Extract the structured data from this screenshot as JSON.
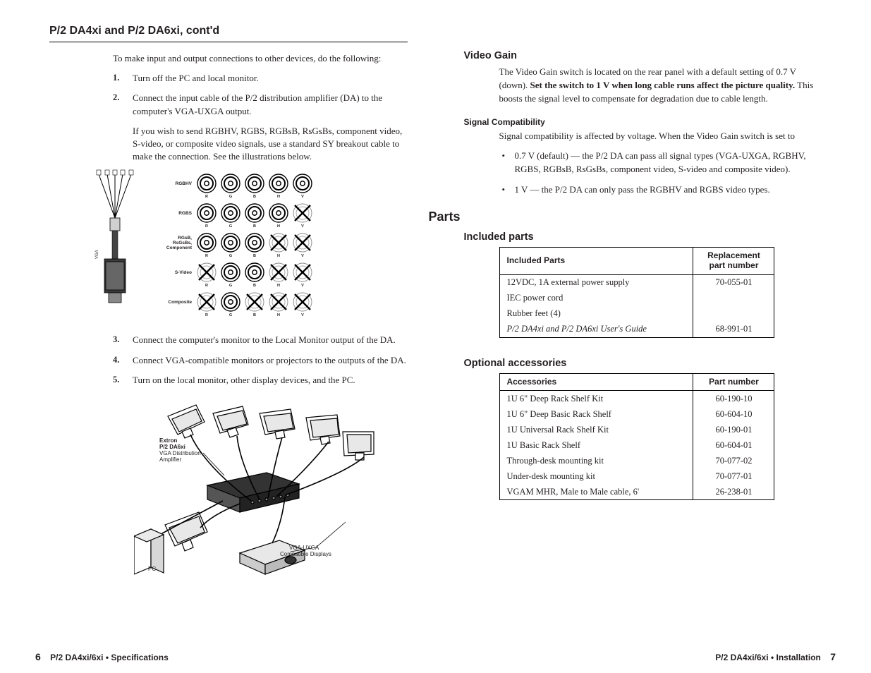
{
  "left": {
    "running_head": "P/2 DA4xi and P/2 DA6xi, cont'd",
    "intro": "To make input and output connections to other devices, do the following:",
    "steps": {
      "s1": "Turn off the PC and local monitor.",
      "s2": "Connect the input cable of the P/2 distribution amplifier (DA) to the computer's VGA-UXGA output.",
      "s2b": "If you wish to send RGBHV, RGBS, RGBsB, RsGsBs, component video, S-video, or composite video signals, use a standard SY breakout cable to make the connection.  See the illustrations below.",
      "s3": "Connect the computer's monitor to the Local Monitor output of the DA.",
      "s4": "Connect VGA-compatible monitors or projectors to the outputs of the DA.",
      "s5": "Turn on the local monitor, other display devices, and the PC."
    },
    "matrix": {
      "rows": [
        {
          "label": "RGBHV",
          "cells": [
            "o",
            "o",
            "o",
            "o",
            "o"
          ]
        },
        {
          "label": "RGBS",
          "cells": [
            "o",
            "o",
            "o",
            "o",
            "x"
          ]
        },
        {
          "label": "RGsB,\nRsGsBs,\nComponent",
          "cells": [
            "o",
            "o",
            "o",
            "x",
            "x"
          ]
        },
        {
          "label": "S-Video",
          "cells": [
            "x",
            "o",
            "o",
            "x",
            "x"
          ]
        },
        {
          "label": "Composite",
          "cells": [
            "x",
            "o",
            "x",
            "x",
            "x"
          ]
        }
      ],
      "subs": [
        "R",
        "G",
        "B",
        "H",
        "V"
      ],
      "vga_label": "VGA"
    },
    "diagram2": {
      "extron_l1": "Extron",
      "extron_l2": "P/2 DA6xi",
      "extron_l3": "VGA Distribution",
      "extron_l4": "Amplifier",
      "pc": "PC",
      "disp_l1": "VGA-UXGA",
      "disp_l2": "Compatible Displays"
    },
    "footer_page": "6",
    "footer_text": "P/2 DA4xi/6xi • Specifications"
  },
  "right": {
    "h2_video": "Video Gain",
    "video_para_a": "The Video Gain switch is located on the rear panel with a default setting of 0.7 V (down).  ",
    "video_para_b": "Set the switch to 1 V when long cable runs affect the picture quality.",
    "video_para_c": "  This boosts the signal level to compensate for degradation due to cable length.",
    "h3_signal": "Signal Compatibility",
    "signal_para": "Signal compatibility is affected by voltage.  When the Video Gain switch is set to",
    "bullet1": "0.7 V (default) — the P/2 DA can pass all signal types (VGA-UXGA, RGBHV, RGBS, RGBsB, RsGsBs, component video, S-video and composite video).",
    "bullet2": "1 V — the P/2 DA can only pass the RGBHV and RGBS video types.",
    "h1_parts": "Parts",
    "h2_included": "Included parts",
    "h2_optional": "Optional accessories",
    "included": {
      "th1": "Included Parts",
      "th2": "Replacement part number",
      "rows": [
        {
          "a": "12VDC, 1A external power supply",
          "b": "70-055-01",
          "ital": false
        },
        {
          "a": "IEC power cord",
          "b": "",
          "ital": false
        },
        {
          "a": "Rubber feet (4)",
          "b": "",
          "ital": false
        },
        {
          "a": "P/2 DA4xi and P/2 DA6xi User's Guide",
          "b": "68-991-01",
          "ital": true
        }
      ]
    },
    "optional": {
      "th1": "Accessories",
      "th2": "Part number",
      "rows": [
        {
          "a": "1U 6\" Deep Rack Shelf Kit",
          "b": "60-190-10"
        },
        {
          "a": "1U 6\" Deep Basic Rack Shelf",
          "b": "60-604-10"
        },
        {
          "a": "1U Universal Rack Shelf Kit",
          "b": "60-190-01"
        },
        {
          "a": "1U Basic Rack Shelf",
          "b": "60-604-01"
        },
        {
          "a": "Through-desk mounting kit",
          "b": "70-077-02"
        },
        {
          "a": "Under-desk mounting kit",
          "b": "70-077-01"
        },
        {
          "a": "VGAM MHR, Male to Male cable, 6'",
          "b": "26-238-01"
        }
      ]
    },
    "footer_text": "P/2 DA4xi/6xi • Installation",
    "footer_page": "7"
  }
}
